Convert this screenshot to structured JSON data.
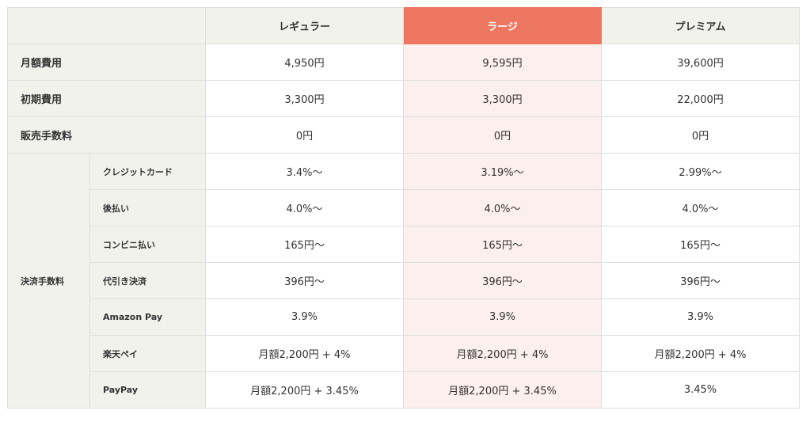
{
  "header": {
    "plans": [
      {
        "name": "レギュラー",
        "highlight": false
      },
      {
        "name": "ラージ",
        "highlight": true
      },
      {
        "name": "プレミアム",
        "highlight": false
      }
    ]
  },
  "colors": {
    "highlight_header": "#ee7762",
    "highlight_cell": "#fcf0ee",
    "label_bg": "#f2f2ed",
    "border": "#dedede"
  },
  "rows": [
    {
      "label": "月額費用",
      "values": [
        "4,950円",
        "9,595円",
        "39,600円"
      ]
    },
    {
      "label": "初期費用",
      "values": [
        "3,300円",
        "3,300円",
        "22,000円"
      ]
    },
    {
      "label": "販売手数料",
      "values": [
        "0円",
        "0円",
        "0円"
      ]
    }
  ],
  "payment_fees": {
    "group_label": "決済手数料",
    "items": [
      {
        "label": "クレジットカード",
        "values": [
          "3.4%〜",
          "3.19%〜",
          "2.99%〜"
        ]
      },
      {
        "label": "後払い",
        "values": [
          "4.0%〜",
          "4.0%〜",
          "4.0%〜"
        ]
      },
      {
        "label": "コンビニ払い",
        "values": [
          "165円〜",
          "165円〜",
          "165円〜"
        ]
      },
      {
        "label": "代引き決済",
        "values": [
          "396円〜",
          "396円〜",
          "396円〜"
        ]
      },
      {
        "label": "Amazon Pay",
        "values": [
          "3.9%",
          "3.9%",
          "3.9%"
        ]
      },
      {
        "label": "楽天ペイ",
        "values": [
          "月額2,200円 + 4%",
          "月額2,200円 + 4%",
          "月額2,200円 + 4%"
        ]
      },
      {
        "label": "PayPay",
        "values": [
          "月額2,200円 + 3.45%",
          "月額2,200円 + 3.45%",
          "3.45%"
        ]
      }
    ]
  }
}
